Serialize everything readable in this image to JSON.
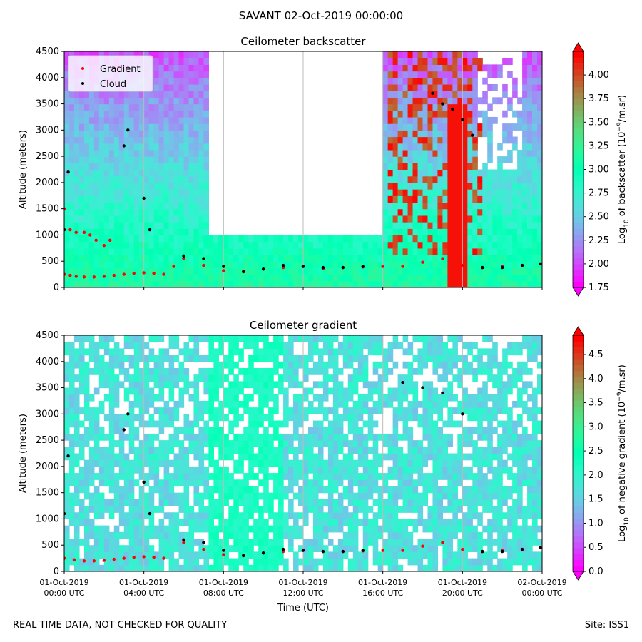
{
  "figure": {
    "suptitle": "SAVANT 02-Oct-2019 00:00:00",
    "footer_left": "REAL TIME DATA, NOT CHECKED FOR QUALITY",
    "footer_right": "Site: ISS1"
  },
  "chart_data": [
    {
      "type": "heatmap",
      "title": "Ceilometer backscatter",
      "xlabel": "",
      "ylabel": "Altitude (meters)",
      "x_range_hours": [
        0,
        24
      ],
      "ylim": [
        0,
        4500
      ],
      "yticks": [
        0,
        500,
        1000,
        1500,
        2000,
        2500,
        3000,
        3500,
        4000,
        4500
      ],
      "xtick_labels": [],
      "colormap": "rainbow",
      "colorbar": {
        "label_main": "Log",
        "label_sub": "10",
        "label_rest": " of backscatter (10",
        "label_sup": "−9",
        "label_end": "/m.sr)",
        "range": [
          1.75,
          4.25
        ],
        "ticks": [
          "1.75",
          "2.00",
          "2.25",
          "2.50",
          "2.75",
          "3.00",
          "3.25",
          "3.50",
          "3.75",
          "4.00"
        ]
      },
      "legend": {
        "placement": "upper-left",
        "entries": [
          {
            "name": "Gradient",
            "color": "#ff0000"
          },
          {
            "name": "Cloud",
            "color": "#000000"
          }
        ]
      },
      "series": [
        {
          "name": "Gradient",
          "color": "#ff0000",
          "x": [
            0.0,
            0.3,
            0.6,
            1.0,
            1.5,
            2.0,
            2.5,
            3.0,
            3.5,
            4.0,
            4.5,
            5.0,
            5.5,
            6.0,
            7.0,
            8.0,
            9.0,
            10.0,
            11.0,
            12.0,
            13.0,
            14.0,
            15.0,
            16.0,
            17.0,
            18.0,
            19.0,
            20.0,
            21.0,
            22.0,
            23.0,
            24.0
          ],
          "y": [
            250,
            230,
            210,
            200,
            200,
            210,
            230,
            250,
            270,
            280,
            270,
            250,
            400,
            550,
            420,
            320,
            300,
            350,
            380,
            400,
            360,
            380,
            390,
            400,
            400,
            480,
            550,
            420,
            380,
            400,
            420,
            450
          ]
        },
        {
          "name": "Gradient",
          "color": "#ff0000",
          "x": [
            0.0,
            0.3,
            0.6,
            1.0,
            1.3,
            1.6,
            2.0,
            2.3
          ],
          "y": [
            1500,
            1100,
            1050,
            1050,
            1000,
            900,
            800,
            900
          ]
        },
        {
          "name": "Cloud",
          "color": "#000000",
          "x": [
            0.0,
            0.2,
            3.0,
            3.2,
            4.0,
            4.3,
            6.0,
            7.0,
            8.0,
            9.0,
            10.0,
            11.0,
            12.0,
            13.0,
            14.0,
            15.0,
            18.5,
            19.0,
            19.5,
            20.0,
            20.5,
            21.0,
            22.0,
            23.0,
            23.9
          ],
          "y": [
            1100,
            2200,
            2700,
            3000,
            1700,
            1100,
            600,
            550,
            400,
            300,
            350,
            420,
            400,
            380,
            380,
            400,
            3700,
            3500,
            3400,
            3200,
            2900,
            380,
            380,
            420,
            450
          ]
        }
      ]
    },
    {
      "type": "heatmap",
      "title": "Ceilometer gradient",
      "xlabel": "Time (UTC)",
      "ylabel": "Altitude (meters)",
      "x_range_hours": [
        0,
        24
      ],
      "ylim": [
        0,
        4500
      ],
      "yticks": [
        0,
        500,
        1000,
        1500,
        2000,
        2500,
        3000,
        3500,
        4000,
        4500
      ],
      "xtick_labels": [
        [
          "01-Oct-2019",
          "00:00 UTC"
        ],
        [
          "01-Oct-2019",
          "04:00 UTC"
        ],
        [
          "01-Oct-2019",
          "08:00 UTC"
        ],
        [
          "01-Oct-2019",
          "12:00 UTC"
        ],
        [
          "01-Oct-2019",
          "16:00 UTC"
        ],
        [
          "01-Oct-2019",
          "20:00 UTC"
        ],
        [
          "02-Oct-2019",
          "00:00 UTC"
        ]
      ],
      "colormap": "rainbow",
      "colorbar": {
        "label_main": "Log",
        "label_sub": "10",
        "label_rest": " of negative gradient (10",
        "label_sup": "−9",
        "label_end": "/m.sr)",
        "range": [
          0.0,
          4.9
        ],
        "ticks": [
          "0.0",
          "0.5",
          "1.0",
          "1.5",
          "2.0",
          "2.5",
          "3.0",
          "3.5",
          "4.0",
          "4.5"
        ]
      },
      "series": [
        {
          "name": "Gradient",
          "color": "#ff0000",
          "x": [
            0.0,
            0.5,
            1.0,
            1.5,
            2.0,
            2.5,
            3.0,
            3.5,
            4.0,
            4.5,
            5.0,
            6.0,
            7.0,
            8.0,
            9.0,
            10.0,
            11.0,
            12.0,
            13.0,
            14.0,
            15.0,
            16.0,
            17.0,
            18.0,
            19.0,
            20.0,
            21.0,
            22.0,
            23.0,
            24.0
          ],
          "y": [
            250,
            220,
            200,
            200,
            210,
            230,
            250,
            270,
            280,
            270,
            250,
            550,
            420,
            320,
            300,
            350,
            380,
            400,
            380,
            380,
            390,
            400,
            400,
            480,
            550,
            420,
            380,
            400,
            420,
            450
          ]
        },
        {
          "name": "Cloud",
          "color": "#000000",
          "x": [
            0.0,
            0.2,
            3.0,
            3.2,
            4.0,
            4.3,
            6.0,
            7.0,
            8.0,
            9.0,
            10.0,
            11.0,
            12.0,
            13.0,
            14.0,
            15.0,
            17.0,
            18.0,
            19.0,
            20.0,
            21.0,
            22.0,
            23.0,
            23.9
          ],
          "y": [
            1100,
            2200,
            2700,
            3000,
            1700,
            1100,
            600,
            550,
            400,
            300,
            350,
            420,
            400,
            380,
            380,
            400,
            3600,
            3500,
            3400,
            3000,
            380,
            380,
            420,
            450
          ]
        }
      ]
    }
  ]
}
